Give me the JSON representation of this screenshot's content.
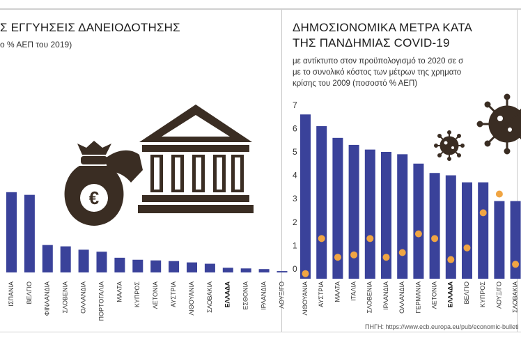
{
  "left_panel": {
    "title": "Σ ΕΓΓΥΗΣΕΙΣ ΔΑΝΕΙΟΔΟΤΗΣΗΣ",
    "subtitle": "ο % ΑΕΠ του 2019)"
  },
  "right_panel": {
    "title_line1": "ΔΗΜΟΣΙΟΝΟΜΙΚΑ ΜΕΤΡΑ ΚΑΤΑ",
    "title_line2": "ΤΗΣ ΠΑΝΔΗΜΙΑΣ COVID-19",
    "subtitle_line1": "με αντίκτυπο στον προϋπολογισμό το 2020 σε σ",
    "subtitle_line2": "με το συνολικό κόστος των μέτρων της χρηματο",
    "subtitle_line3": "κρίσης του 2009 (ποσοστό % ΑΕΠ)",
    "source": "ΠΗΓΗ: https://www.ecb.europa.eu/pub/economic-bulleti"
  },
  "icons": {
    "money_bag": "money-bag-euro-icon",
    "bank": "bank-building-icon",
    "virus": "coronavirus-icon",
    "bar_color": "#3a429a",
    "dot_color": "#f0a543",
    "icon_color": "#3a2d23"
  },
  "chart_data": [
    {
      "type": "bar",
      "categories": [
        "ΙΣΠΑΝΙΑ",
        "ΒΕΛΓΙΟ",
        "ΦΙΝΛΑΝΔΙΑ",
        "ΣΛΟΒΕΝΙΑ",
        "ΟΛΛΑΝΔΙΑ",
        "ΠΟΡΤΟΓΑΛΙΑ",
        "ΜΑΛΤΑ",
        "ΚΥΠΡΟΣ",
        "ΛΕΤΟΝΙΑ",
        "ΑΥΣΤΡΙΑ",
        "ΛΙΘΟΥΑΝΙΑ",
        "ΣΛΟΒΑΚΙΑ",
        "ΕΛΛΑΔΑ",
        "ΕΣΘΟΝΙΑ",
        "ΙΡΛΑΝΔΙΑ",
        "ΛΟΥΞ/ΓΟ"
      ],
      "values": [
        12.0,
        11.6,
        4.1,
        3.9,
        3.4,
        3.1,
        2.2,
        1.9,
        1.8,
        1.7,
        1.5,
        1.3,
        0.7,
        0.6,
        0.5,
        0.2
      ],
      "highlight": "ΕΛΛΑΔΑ",
      "title": "",
      "xlabel": "",
      "ylabel": "",
      "ylim": [
        0,
        16
      ]
    },
    {
      "type": "bar",
      "categories": [
        "ΛΙΘΟΥΑΝΙΑ",
        "ΑΥΣΤΡΙΑ",
        "ΜΑΛΤΑ",
        "ΙΤΑΛΙΑ",
        "ΣΛΟΒΕΝΙΑ",
        "ΙΡΛΑΝΔΙΑ",
        "ΟΛΛΑΝΔΙΑ",
        "ΓΕΡΜΑΝΙΑ",
        "ΛΕΤΟΝΙΑ",
        "ΕΛΛΑΔΑ",
        "ΒΕΛΓΙΟ",
        "ΚΥΠΡΟΣ",
        "ΛΟΥΞ/ΓΟ",
        "ΣΛΟΒΑΚΙΑ"
      ],
      "series": [
        {
          "values": [
            6.6,
            6.1,
            5.6,
            5.3,
            5.1,
            5.0,
            4.9,
            4.5,
            4.1,
            4.0,
            3.7,
            3.7,
            2.9,
            2.9
          ]
        },
        {
          "values": [
            -0.2,
            1.3,
            0.5,
            0.6,
            1.3,
            0.5,
            0.7,
            1.5,
            1.3,
            0.4,
            0.9,
            2.4,
            3.2,
            0.2
          ]
        }
      ],
      "highlight": "ΕΛΛΑΔΑ",
      "title": "",
      "xlabel": "",
      "ylabel": "",
      "yticks": [
        "0",
        "1",
        "2",
        "3",
        "4",
        "5",
        "6",
        "7"
      ],
      "ylim": [
        -0.3,
        7
      ]
    }
  ]
}
